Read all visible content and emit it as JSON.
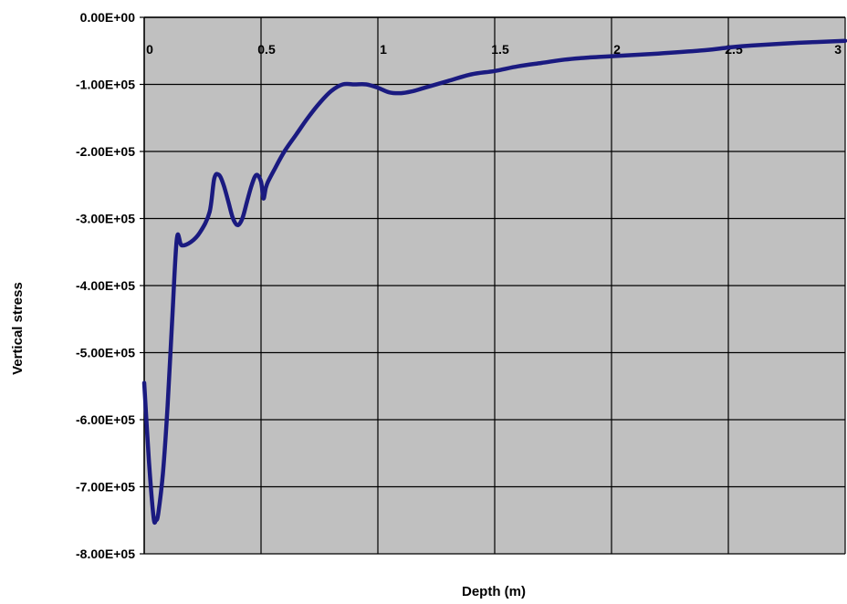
{
  "chart_data": {
    "type": "line",
    "title": "",
    "xlabel": "Depth (m)",
    "ylabel": "Vertical stress",
    "xlim": [
      0,
      3
    ],
    "ylim": [
      -800000,
      0
    ],
    "x_ticks": [
      0,
      0.5,
      1,
      1.5,
      2,
      2.5,
      3
    ],
    "x_tick_labels": [
      "0",
      "0.5",
      "1",
      "1.5",
      "2",
      "2.5",
      "3"
    ],
    "y_ticks": [
      0,
      -100000,
      -200000,
      -300000,
      -400000,
      -500000,
      -600000,
      -700000,
      -800000
    ],
    "y_tick_labels": [
      "0.00E+00",
      "-1.00E+05",
      "-2.00E+05",
      "-3.00E+05",
      "-4.00E+05",
      "-5.00E+05",
      "-6.00E+05",
      "-7.00E+05",
      "-8.00E+05"
    ],
    "grid": true,
    "x_axis_position": "top",
    "plot_background": "#c0c0c0",
    "series": [
      {
        "color": "#1a1a80",
        "x": [
          0.0,
          0.02,
          0.04,
          0.05,
          0.06,
          0.08,
          0.1,
          0.12,
          0.14,
          0.16,
          0.2,
          0.24,
          0.28,
          0.3,
          0.32,
          0.34,
          0.36,
          0.38,
          0.4,
          0.42,
          0.44,
          0.46,
          0.48,
          0.5,
          0.51,
          0.52,
          0.53,
          0.56,
          0.6,
          0.65,
          0.7,
          0.75,
          0.8,
          0.85,
          0.9,
          0.95,
          1.0,
          1.05,
          1.1,
          1.15,
          1.2,
          1.3,
          1.4,
          1.5,
          1.6,
          1.7,
          1.8,
          1.9,
          2.0,
          2.2,
          2.4,
          2.5,
          2.6,
          2.8,
          3.0
        ],
        "y": [
          -545000,
          -660000,
          -745000,
          -750000,
          -740000,
          -680000,
          -580000,
          -450000,
          -330000,
          -340000,
          -335000,
          -320000,
          -290000,
          -240000,
          -235000,
          -250000,
          -275000,
          -300000,
          -310000,
          -300000,
          -275000,
          -250000,
          -235000,
          -245000,
          -270000,
          -255000,
          -245000,
          -225000,
          -200000,
          -175000,
          -150000,
          -128000,
          -110000,
          -100000,
          -100000,
          -100000,
          -105000,
          -112000,
          -113000,
          -110000,
          -105000,
          -95000,
          -85000,
          -80000,
          -73000,
          -68000,
          -63000,
          -60000,
          -58000,
          -54000,
          -49000,
          -45000,
          -42000,
          -38000,
          -35000
        ]
      }
    ]
  }
}
